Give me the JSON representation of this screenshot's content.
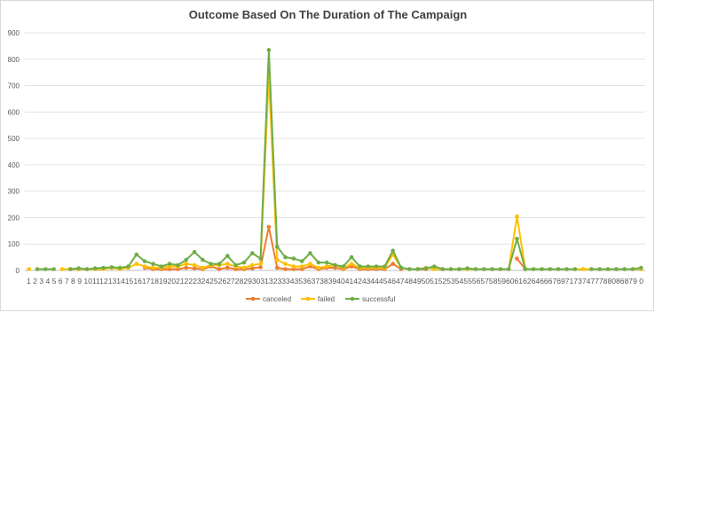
{
  "chart_data": {
    "type": "line",
    "title": "Outcome Based On The Duration of The Campaign",
    "xlabel": "",
    "ylabel": "",
    "ylim": [
      0,
      900
    ],
    "y_ticks": [
      0,
      100,
      200,
      300,
      400,
      500,
      600,
      700,
      800,
      900
    ],
    "grid": true,
    "legend_position": "bottom",
    "x_tick_text": "1 2 3 4 5 6 7 8 9 10111213141516171819202122232425262728293031323334353637383940414243444546474849505152535455565758596061626466676971737477788086879 0",
    "categories": [
      "1",
      "2",
      "3",
      "4",
      "5",
      "6",
      "7",
      "8",
      "9",
      "10",
      "11",
      "12",
      "13",
      "14",
      "15",
      "16",
      "17",
      "18",
      "19",
      "20",
      "21",
      "22",
      "23",
      "24",
      "25",
      "26",
      "27",
      "28",
      "29",
      "30",
      "31",
      "32",
      "33",
      "34",
      "35",
      "36",
      "37",
      "38",
      "39",
      "40",
      "41",
      "42",
      "43",
      "44",
      "45",
      "46",
      "47",
      "48",
      "49",
      "50",
      "51",
      "52",
      "53",
      "54",
      "55",
      "56",
      "57",
      "58",
      "59",
      "60",
      "61",
      "62",
      "64",
      "66",
      "67",
      "69",
      "71",
      "73",
      "74",
      "77",
      "78",
      "80",
      "86",
      "87",
      "90"
    ],
    "series": [
      {
        "name": "canceled",
        "color": "#ED7D31",
        "values": [
          null,
          null,
          null,
          null,
          null,
          null,
          null,
          null,
          null,
          null,
          null,
          null,
          null,
          null,
          10,
          5,
          5,
          5,
          5,
          10,
          8,
          5,
          15,
          5,
          10,
          5,
          5,
          8,
          12,
          165,
          10,
          5,
          5,
          5,
          15,
          5,
          10,
          10,
          5,
          15,
          5,
          5,
          5,
          5,
          25,
          5,
          null,
          5,
          5,
          null,
          null,
          null,
          null,
          null,
          null,
          null,
          null,
          null,
          null,
          45,
          5,
          null,
          null,
          null,
          null,
          null,
          null,
          null,
          null,
          null,
          null,
          null,
          null,
          null,
          null
        ]
      },
      {
        "name": "failed",
        "color": "#FFC000",
        "values": [
          5,
          null,
          null,
          null,
          5,
          5,
          5,
          5,
          5,
          5,
          10,
          5,
          10,
          25,
          15,
          10,
          10,
          15,
          15,
          25,
          20,
          10,
          20,
          20,
          25,
          15,
          10,
          20,
          25,
          740,
          40,
          25,
          15,
          15,
          25,
          10,
          15,
          20,
          10,
          25,
          10,
          10,
          10,
          10,
          60,
          10,
          5,
          5,
          10,
          5,
          5,
          5,
          5,
          5,
          5,
          5,
          5,
          5,
          5,
          205,
          5,
          5,
          5,
          5,
          5,
          5,
          5,
          5,
          5,
          5,
          5,
          5,
          5,
          5,
          5
        ]
      },
      {
        "name": "successful",
        "color": "#70AD47",
        "values": [
          null,
          5,
          5,
          5,
          null,
          5,
          8,
          5,
          8,
          10,
          12,
          10,
          15,
          60,
          35,
          25,
          15,
          25,
          20,
          40,
          70,
          40,
          25,
          25,
          55,
          20,
          30,
          65,
          45,
          835,
          90,
          50,
          45,
          35,
          65,
          30,
          30,
          20,
          15,
          50,
          15,
          15,
          15,
          15,
          75,
          10,
          5,
          5,
          8,
          15,
          5,
          5,
          5,
          8,
          5,
          5,
          5,
          5,
          5,
          120,
          5,
          5,
          5,
          5,
          5,
          5,
          5,
          null,
          5,
          5,
          5,
          5,
          5,
          5,
          10
        ]
      }
    ]
  }
}
